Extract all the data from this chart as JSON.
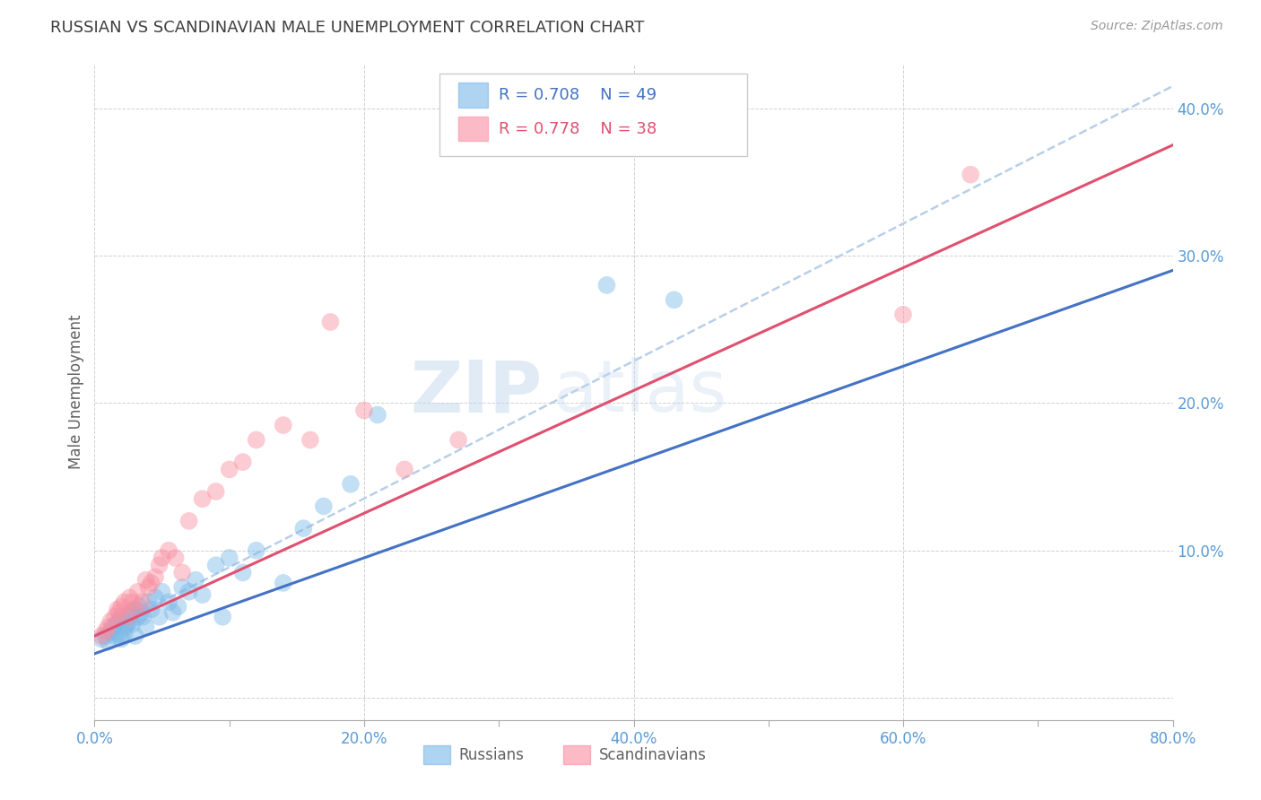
{
  "title": "RUSSIAN VS SCANDINAVIAN MALE UNEMPLOYMENT CORRELATION CHART",
  "source": "Source: ZipAtlas.com",
  "ylabel": "Male Unemployment",
  "xlim": [
    0.0,
    0.8
  ],
  "ylim": [
    -0.015,
    0.43
  ],
  "legend_r1": "R = 0.708",
  "legend_n1": "N = 49",
  "legend_r2": "R = 0.778",
  "legend_n2": "N = 38",
  "blue_color": "#7ab8e8",
  "pink_color": "#f98ea0",
  "blue_line_color": "#4472c4",
  "pink_line_color": "#e05070",
  "dashed_line_color": "#b8cfe8",
  "watermark_zip": "ZIP",
  "watermark_atlas": "atlas",
  "title_color": "#404040",
  "axis_label_color": "#606060",
  "tick_label_color": "#5b9bd5",
  "grid_color": "#d0d0d0",
  "russians_x": [
    0.005,
    0.008,
    0.01,
    0.012,
    0.013,
    0.015,
    0.016,
    0.018,
    0.018,
    0.02,
    0.02,
    0.022,
    0.023,
    0.024,
    0.025,
    0.026,
    0.027,
    0.028,
    0.03,
    0.03,
    0.032,
    0.033,
    0.035,
    0.036,
    0.038,
    0.04,
    0.042,
    0.045,
    0.048,
    0.05,
    0.055,
    0.058,
    0.062,
    0.065,
    0.07,
    0.075,
    0.08,
    0.09,
    0.095,
    0.1,
    0.11,
    0.12,
    0.14,
    0.155,
    0.17,
    0.19,
    0.21,
    0.38,
    0.43
  ],
  "russians_y": [
    0.04,
    0.042,
    0.038,
    0.045,
    0.048,
    0.042,
    0.05,
    0.043,
    0.052,
    0.04,
    0.055,
    0.043,
    0.048,
    0.05,
    0.055,
    0.052,
    0.058,
    0.05,
    0.042,
    0.06,
    0.055,
    0.062,
    0.058,
    0.055,
    0.048,
    0.065,
    0.06,
    0.068,
    0.055,
    0.072,
    0.065,
    0.058,
    0.062,
    0.075,
    0.072,
    0.08,
    0.07,
    0.09,
    0.055,
    0.095,
    0.085,
    0.1,
    0.078,
    0.115,
    0.13,
    0.145,
    0.192,
    0.28,
    0.27
  ],
  "scandinavians_x": [
    0.005,
    0.008,
    0.01,
    0.012,
    0.015,
    0.017,
    0.018,
    0.02,
    0.022,
    0.025,
    0.026,
    0.028,
    0.03,
    0.032,
    0.035,
    0.038,
    0.04,
    0.042,
    0.045,
    0.048,
    0.05,
    0.055,
    0.06,
    0.065,
    0.07,
    0.08,
    0.09,
    0.1,
    0.11,
    0.12,
    0.14,
    0.16,
    0.175,
    0.2,
    0.23,
    0.27,
    0.6,
    0.65
  ],
  "scandinavians_y": [
    0.042,
    0.045,
    0.048,
    0.052,
    0.055,
    0.06,
    0.058,
    0.062,
    0.065,
    0.055,
    0.068,
    0.065,
    0.06,
    0.072,
    0.065,
    0.08,
    0.075,
    0.078,
    0.082,
    0.09,
    0.095,
    0.1,
    0.095,
    0.085,
    0.12,
    0.135,
    0.14,
    0.155,
    0.16,
    0.175,
    0.185,
    0.175,
    0.255,
    0.195,
    0.155,
    0.175,
    0.26,
    0.355
  ],
  "blue_line_y_start": 0.03,
  "blue_line_y_end": 0.29,
  "pink_line_y_start": 0.042,
  "pink_line_y_end": 0.375,
  "dashed_line_y_start": 0.042,
  "dashed_line_y_end": 0.415
}
